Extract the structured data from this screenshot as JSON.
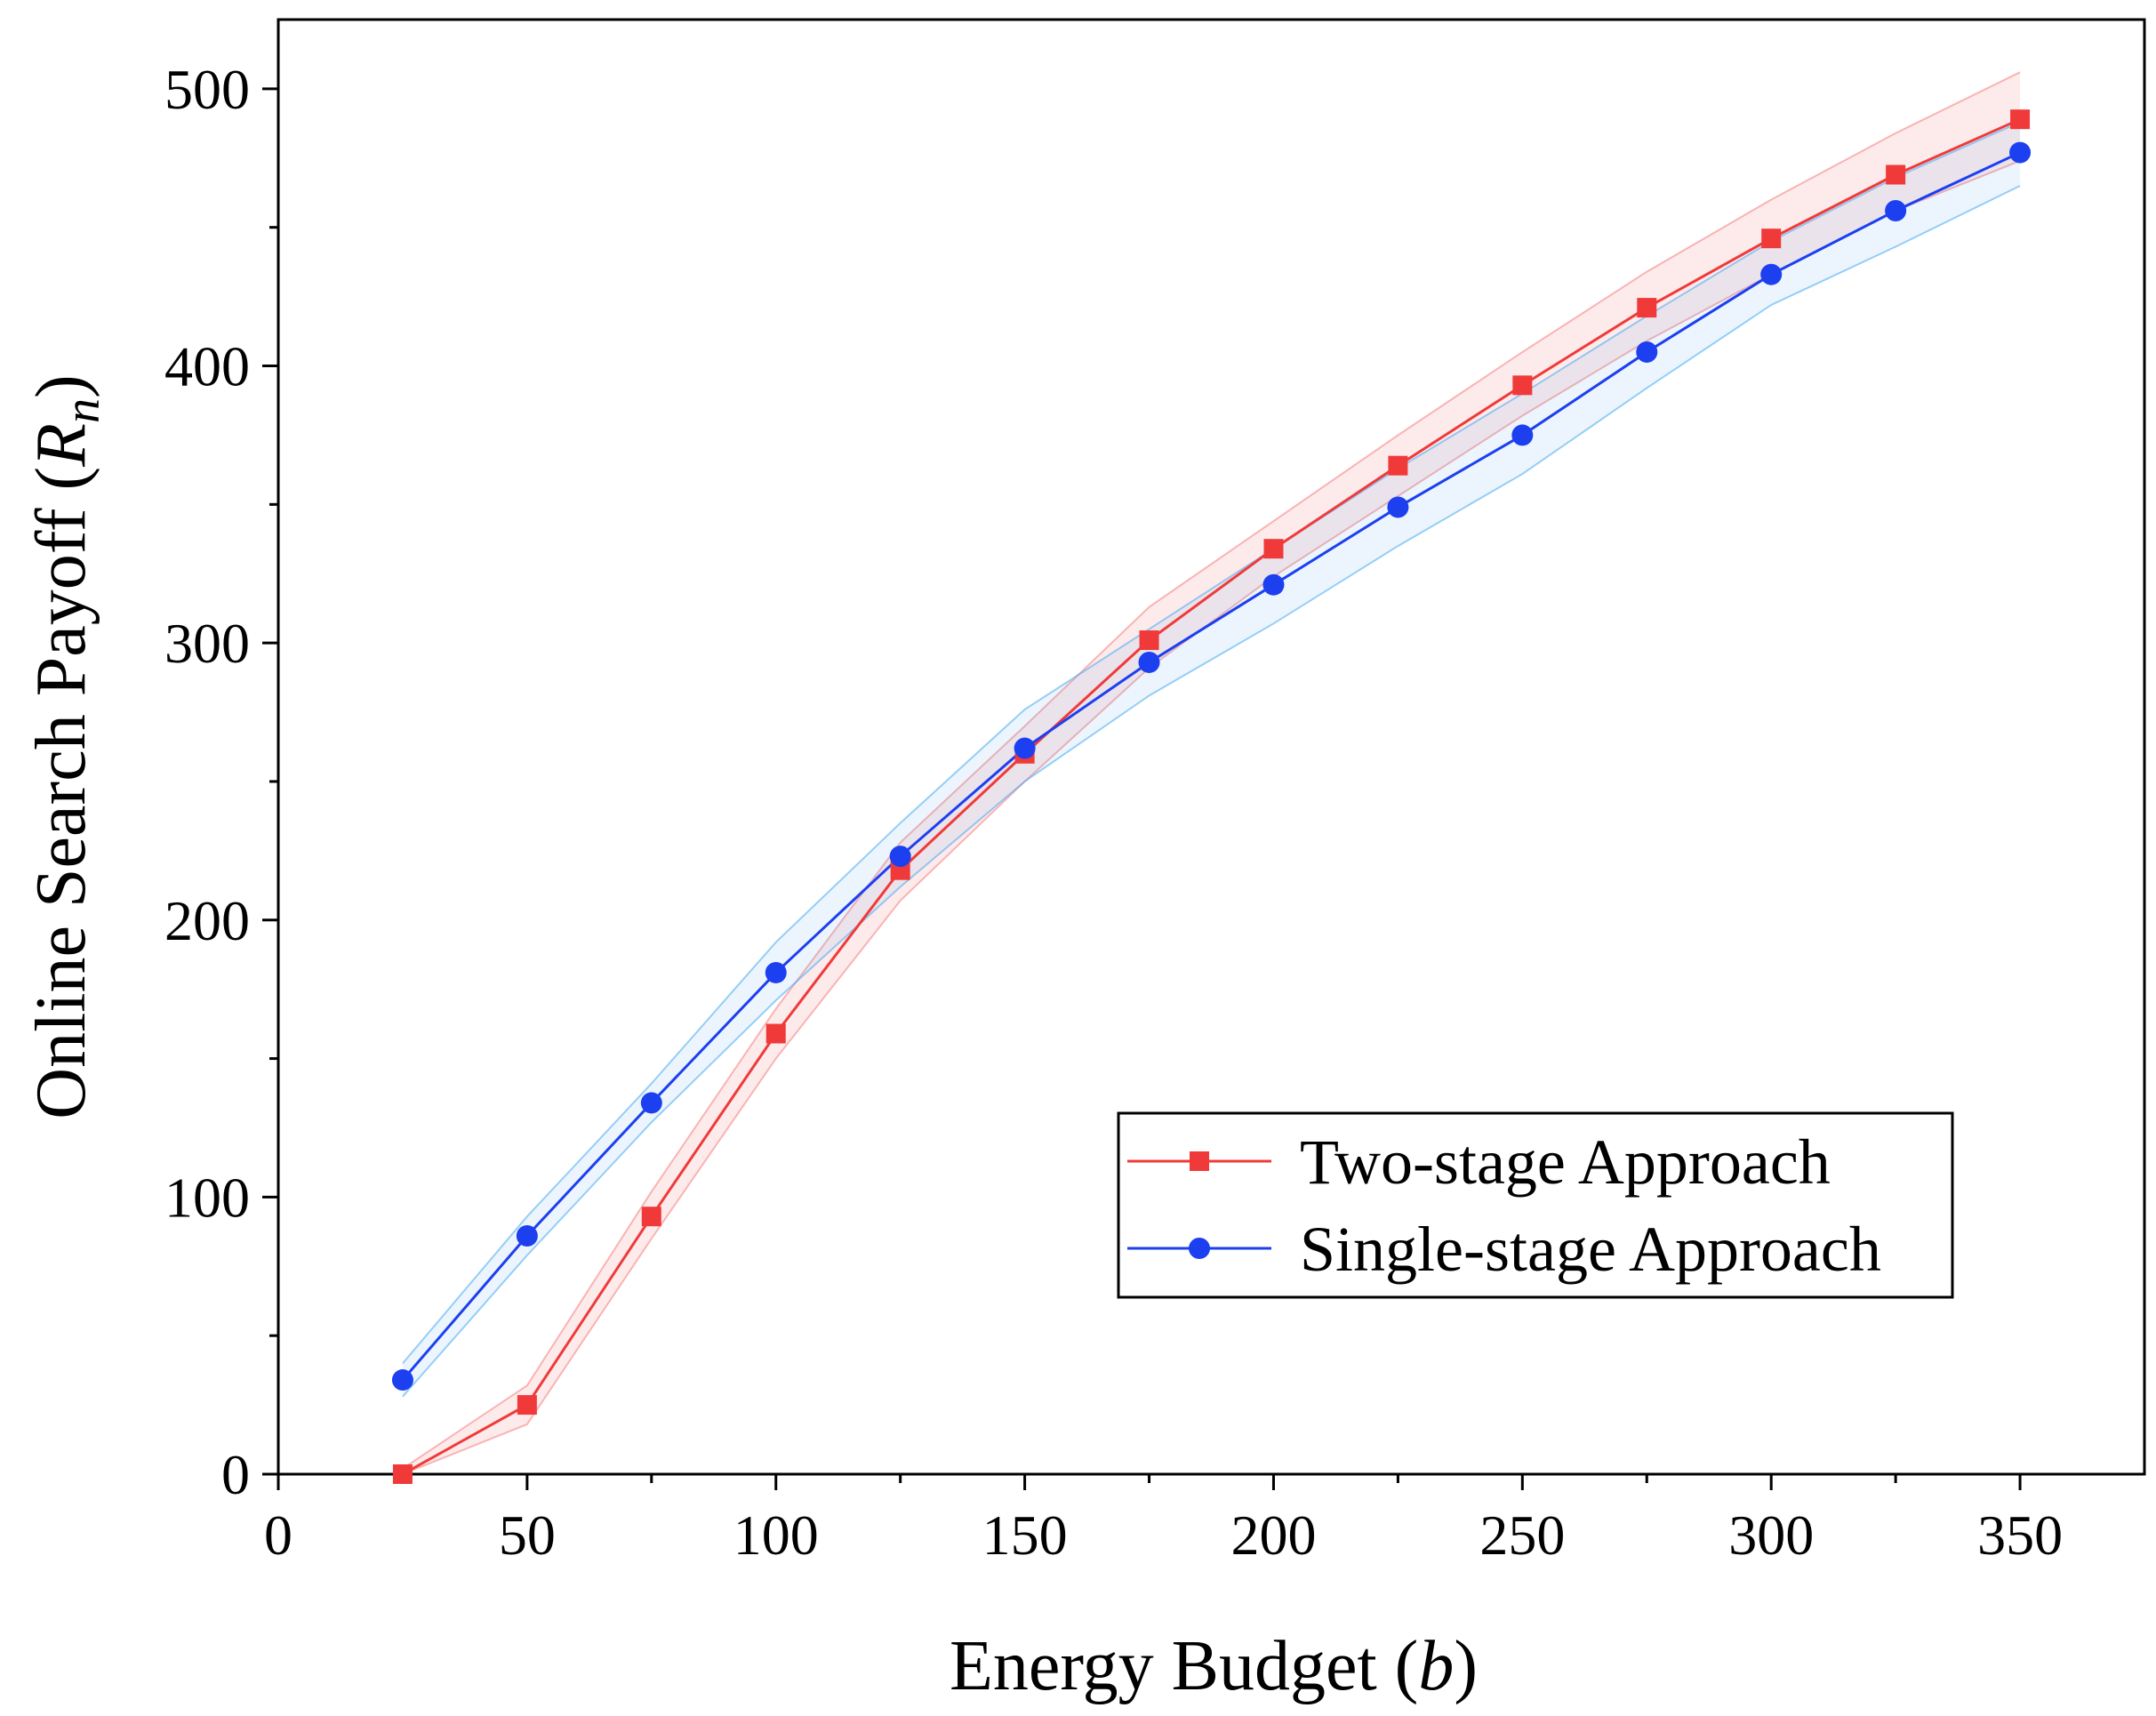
{
  "chart_data": {
    "type": "line",
    "title": "",
    "xlabel": "Energy Budget (b)",
    "xlabel_parts": {
      "main": "Energy Budget (",
      "var": "b",
      "close": ")"
    },
    "ylabel": "Online Search Payoff (R_n)",
    "ylabel_parts": {
      "main": "Online Search Payoff (",
      "var": "R",
      "sub": "n",
      "close": ")"
    },
    "xlim": [
      0,
      375
    ],
    "ylim": [
      0,
      525
    ],
    "xticks": [
      0,
      50,
      100,
      150,
      200,
      250,
      300,
      350
    ],
    "yticks": [
      0,
      100,
      200,
      300,
      400,
      500
    ],
    "x": [
      25,
      50,
      75,
      100,
      125,
      150,
      175,
      200,
      225,
      250,
      275,
      300,
      325,
      350
    ],
    "series": [
      {
        "name": "Two-stage Approach",
        "color": "#f03a3a",
        "marker": "square",
        "values": [
          0,
          25,
          93,
          159,
          218,
          260,
          301,
          334,
          364,
          393,
          421,
          446,
          469,
          489
        ],
        "band_lower": [
          0,
          18,
          85,
          150,
          207,
          250,
          291,
          324,
          353,
          382,
          409,
          433,
          456,
          474
        ],
        "band_upper": [
          2,
          32,
          102,
          168,
          228,
          270,
          313,
          344,
          375,
          405,
          434,
          460,
          484,
          506
        ]
      },
      {
        "name": "Single-stage Approach",
        "color": "#1c3ff0",
        "marker": "circle",
        "values": [
          34,
          86,
          134,
          181,
          223,
          262,
          293,
          321,
          349,
          375,
          405,
          433,
          456,
          477
        ],
        "band_lower": [
          28,
          79,
          127,
          171,
          212,
          250,
          281,
          307,
          335,
          361,
          392,
          422,
          443,
          465
        ],
        "band_upper": [
          40,
          93,
          141,
          192,
          235,
          276,
          305,
          334,
          363,
          390,
          418,
          445,
          468,
          488
        ]
      }
    ],
    "legend_position": "bottom-right"
  }
}
